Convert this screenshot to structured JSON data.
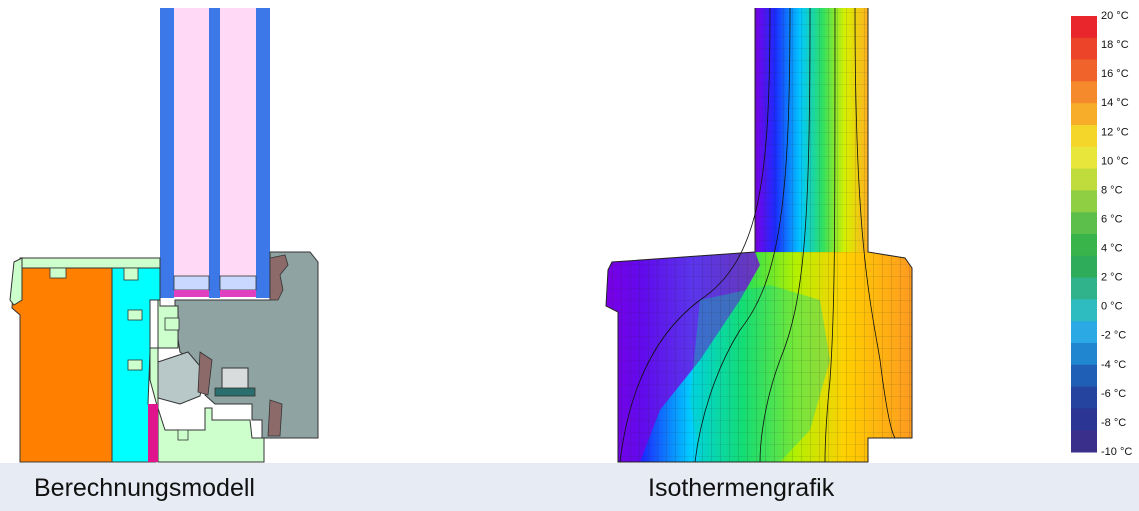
{
  "left_panel": {
    "caption": "Berechnungsmodell"
  },
  "right_panel": {
    "caption": "Isothermengrafik"
  },
  "colors": {
    "frame_orange": "#ff8000",
    "insulation_cyan": "#00ffff",
    "seal_mint": "#ccffcc",
    "sash_grey": "#8fa3a3",
    "glass_blue": "#3c78e8",
    "glass_pink": "#ffd9f5",
    "magenta": "#e0148c",
    "caption_bg": "#e6ebf4"
  },
  "legend": {
    "unit": "°C",
    "ticks": [
      "20 °C",
      "18 °C",
      "16 °C",
      "14 °C",
      "12 °C",
      "10 °C",
      "8 °C",
      "6 °C",
      "4 °C",
      "2 °C",
      "0 °C",
      "-2 °C",
      "-4 °C",
      "-6 °C",
      "-8 °C",
      "-10 °C"
    ],
    "steps": [
      "#e8262b",
      "#ec4429",
      "#f0632a",
      "#f48a2b",
      "#f7ad2a",
      "#f4d62a",
      "#e8e63a",
      "#c0dc3c",
      "#8fcf44",
      "#5cbf4c",
      "#38b44a",
      "#2eac5a",
      "#30b38b",
      "#2fbcc0",
      "#2aa9e4",
      "#1f86cf",
      "#1f5fb6",
      "#2544a0",
      "#2b3593",
      "#3a2f8a"
    ]
  }
}
